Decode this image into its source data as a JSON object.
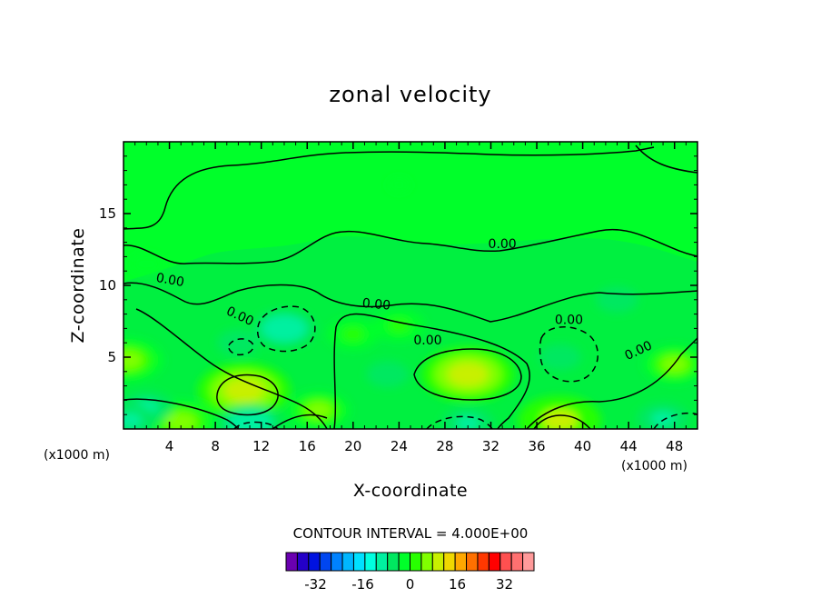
{
  "chart_data": {
    "type": "heatmap",
    "title": "zonal velocity",
    "xlabel": "X-coordinate",
    "ylabel": "Z-coordinate",
    "x_unit": "(x1000 m)",
    "z_unit": "(x1000 m)",
    "xlim": [
      0,
      50
    ],
    "ylim": [
      0,
      20
    ],
    "x_ticks": [
      4,
      8,
      12,
      16,
      20,
      24,
      28,
      32,
      36,
      40,
      44,
      48
    ],
    "y_ticks": [
      5,
      10,
      15
    ],
    "contour_interval_text": "CONTOUR INTERVAL = 4.000E+00",
    "contour_label": "0.00",
    "colorbar": {
      "levels": [
        -36,
        -32,
        -28,
        -24,
        -20,
        -16,
        -12,
        -8,
        -4,
        0,
        4,
        8,
        12,
        16,
        20,
        24,
        28,
        32,
        36
      ],
      "tick_labels": [
        "-32",
        "-16",
        "0",
        "16",
        "32"
      ],
      "tick_values": [
        -32,
        -16,
        0,
        16,
        32
      ],
      "colors": [
        "#6a00b0",
        "#2400c8",
        "#0012e0",
        "#0046f0",
        "#0082ff",
        "#00b6ff",
        "#00e0ff",
        "#00ffe0",
        "#00f0a0",
        "#00e860",
        "#00ff2a",
        "#28ff00",
        "#80ff00",
        "#c8f000",
        "#f0d800",
        "#ffa800",
        "#ff7000",
        "#ff3800",
        "#ff0000",
        "#ff5050",
        "#ff7070",
        "#ff9a9a"
      ]
    },
    "features": [
      {
        "x": 30,
        "z": 3.8,
        "value": 14
      },
      {
        "x": 10.5,
        "z": 2.7,
        "value": 14
      },
      {
        "x": 38,
        "z": 0.6,
        "value": 12
      },
      {
        "x": 5,
        "z": 0.5,
        "value": 10
      },
      {
        "x": 17,
        "z": 1.3,
        "value": 8
      },
      {
        "x": 0.3,
        "z": 4.8,
        "value": 10
      },
      {
        "x": 48,
        "z": 4.5,
        "value": 8
      },
      {
        "x": 20,
        "z": 6.6,
        "value": 6
      },
      {
        "x": 24,
        "z": 7.2,
        "value": 6
      },
      {
        "x": 14,
        "z": 7,
        "value": -8
      },
      {
        "x": 10,
        "z": 6,
        "value": -4
      },
      {
        "x": 38,
        "z": 5,
        "value": -4
      },
      {
        "x": 11,
        "z": 0.4,
        "value": -8
      },
      {
        "x": 30,
        "z": 0.4,
        "value": -6
      },
      {
        "x": 47,
        "z": 0.7,
        "value": -6
      },
      {
        "x": 2,
        "z": 1.5,
        "value": -6
      },
      {
        "x": 0.6,
        "z": 0.6,
        "value": -6
      },
      {
        "x": 23,
        "z": 3.8,
        "value": -4
      },
      {
        "x": 43,
        "z": 9,
        "value": -4
      },
      {
        "x": 2,
        "z": 11.5,
        "value": 2
      },
      {
        "x": 24,
        "z": 17,
        "value": 0
      }
    ]
  }
}
